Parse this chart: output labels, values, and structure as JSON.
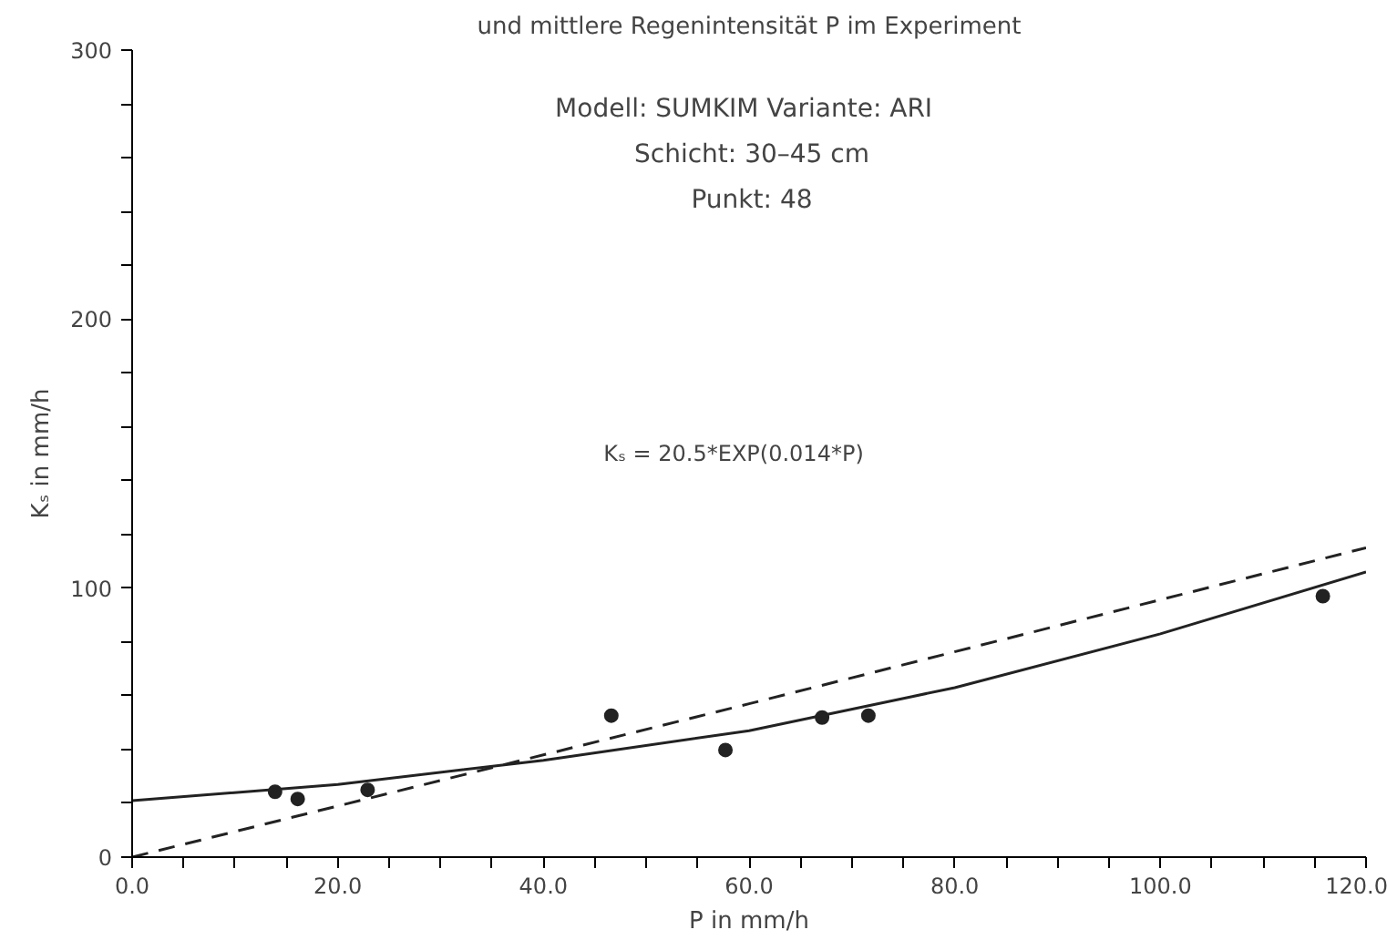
{
  "chart_data": {
    "type": "scatter",
    "title": "und mittlere Regenintensität P im Experiment",
    "xlabel": "P in mm/h",
    "ylabel": "Kₛ in mm/h",
    "annotations": [
      "Modell: SUMKIM   Variante: ARI",
      "Schicht: 30–45 cm",
      "Punkt: 48",
      "Kₛ = 20.5*EXP(0.014*P)"
    ],
    "series": [
      {
        "marker": "circle",
        "color": "#222222",
        "x": [
          13.9,
          16.1,
          22.9,
          46.6,
          57.7,
          67.1,
          71.6,
          115.8
        ],
        "values": [
          24.3,
          21.6,
          25,
          52.6,
          39.8,
          51.9,
          52.6,
          97
        ]
      },
      {
        "type": "line",
        "line_style": "solid",
        "color": "#222222",
        "x": [
          0,
          20,
          40,
          60,
          80,
          100,
          120
        ],
        "values": [
          21,
          27,
          36,
          47,
          63,
          83,
          106
        ]
      },
      {
        "type": "line",
        "line_style": "dashed",
        "color": "#222222",
        "x": [
          0,
          60,
          120
        ],
        "values": [
          0,
          57,
          115
        ]
      }
    ],
    "xlim": [
      0,
      120
    ],
    "ylim": [
      0,
      300
    ],
    "xticks": [
      {
        "value": 0,
        "label": "0.0"
      },
      {
        "value": 5,
        "label": null
      },
      {
        "value": 10,
        "label": null
      },
      {
        "value": 15,
        "label": null
      },
      {
        "value": 20,
        "label": "20.0"
      },
      {
        "value": 25,
        "label": null
      },
      {
        "value": 30,
        "label": null
      },
      {
        "value": 35,
        "label": null
      },
      {
        "value": 40,
        "label": "40.0"
      },
      {
        "value": 45,
        "label": null
      },
      {
        "value": 50,
        "label": null
      },
      {
        "value": 55,
        "label": null
      },
      {
        "value": 60,
        "label": "60.0"
      },
      {
        "value": 65,
        "label": null
      },
      {
        "value": 70,
        "label": null
      },
      {
        "value": 75,
        "label": null
      },
      {
        "value": 80,
        "label": "80.0"
      },
      {
        "value": 85,
        "label": null
      },
      {
        "value": 90,
        "label": null
      },
      {
        "value": 95,
        "label": null
      },
      {
        "value": 100,
        "label": "100.0"
      },
      {
        "value": 105,
        "label": null
      },
      {
        "value": 110,
        "label": null
      },
      {
        "value": 115,
        "label": null
      },
      {
        "value": 120,
        "label": "120.0"
      }
    ],
    "yticks": [
      0,
      {
        "value": 20,
        "label": null
      },
      {
        "value": 40,
        "label": null
      },
      {
        "value": 60,
        "label": null
      },
      {
        "value": 80,
        "label": null
      },
      100,
      {
        "value": 120,
        "label": null
      },
      {
        "value": 140,
        "label": null
      },
      {
        "value": 160,
        "label": null
      },
      {
        "value": 180,
        "label": null
      },
      200,
      {
        "value": 220,
        "label": null
      },
      {
        "value": 240,
        "label": null
      },
      {
        "value": 260,
        "label": null
      },
      {
        "value": 280,
        "label": null
      },
      300
    ],
    "grid": false
  }
}
